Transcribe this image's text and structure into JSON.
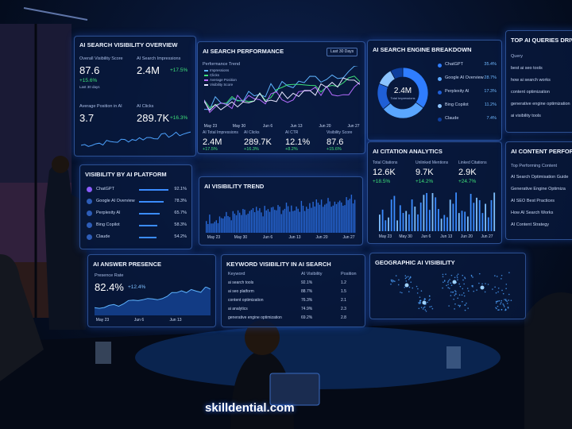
{
  "overview": {
    "title": "AI SEARCH VISIBILITY OVERVIEW",
    "metrics": [
      {
        "label": "Overall Visibility Score",
        "value": "87.6",
        "change": "+15.6%",
        "note": "Last 30 days"
      },
      {
        "label": "AI Search Impressions",
        "value": "2.4M",
        "change": "+17.5%"
      },
      {
        "label": "Average Position in AI",
        "value": "3.7"
      },
      {
        "label": "AI Clicks",
        "value": "289.7K",
        "change": "+16.3%"
      }
    ]
  },
  "performance": {
    "title": "AI SEARCH PERFORMANCE",
    "range": "Last 30 Days",
    "chart_label": "Performance Trend",
    "legend": [
      "Impressions",
      "Clicks",
      "Average Position",
      "Visibility Score"
    ],
    "x_labels": [
      "May 23",
      "May 30",
      "Jun 6",
      "Jun 13",
      "Jun 20",
      "Jun 27"
    ],
    "metrics": [
      {
        "label": "AI Total Impressions",
        "value": "2.4M",
        "change": "+17.5%"
      },
      {
        "label": "AI Clicks",
        "value": "289.7K",
        "change": "+16.3%"
      },
      {
        "label": "AI CTR",
        "value": "12.1%",
        "change": "+8.2%"
      },
      {
        "label": "Visibility Score",
        "value": "87.6",
        "change": "+15.6%"
      }
    ]
  },
  "engines": {
    "title": "AI SEARCH ENGINE BREAKDOWN",
    "center_value": "2.4M",
    "center_label": "Total Impressions",
    "rows": [
      [
        "ChatGPT",
        "35.4%"
      ],
      [
        "Google AI Overview",
        "28.7%"
      ],
      [
        "Perplexity AI",
        "17.3%"
      ],
      [
        "Bing Copilot",
        "11.2%"
      ],
      [
        "Claude",
        "7.4%"
      ]
    ]
  },
  "top_queries": {
    "title": "TOP AI QUERIES DRIVING",
    "header": "Query",
    "rows": [
      "best ai seo tools",
      "how ai search works",
      "content optimization",
      "generative engine optimization",
      "ai visibility tools"
    ]
  },
  "platforms": {
    "title": "VISIBILITY BY AI PLATFORM",
    "rows": [
      [
        "ChatGPT",
        "92.1%"
      ],
      [
        "Google AI Overview",
        "78.3%"
      ],
      [
        "Perplexity AI",
        "65.7%"
      ],
      [
        "Bing Copilot",
        "58.3%"
      ],
      [
        "Claude",
        "54.2%"
      ]
    ]
  },
  "trend": {
    "title": "AI VISIBILITY TREND",
    "x_labels": [
      "May 23",
      "May 30",
      "Jun 6",
      "Jun 13",
      "Jun 20",
      "Jun 27"
    ]
  },
  "citations": {
    "title": "AI CITATION ANALYTICS",
    "metrics": [
      [
        "Total Citations",
        "12.6K",
        "+18.5%"
      ],
      [
        "Unlinked Mentions",
        "9.7K",
        "+14.2%"
      ],
      [
        "Linked Citations",
        "2.9K",
        "+24.7%"
      ]
    ],
    "x_labels": [
      "May 23",
      "May 30",
      "Jun 6",
      "Jun 13",
      "Jun 20",
      "Jun 27"
    ]
  },
  "content": {
    "title": "AI CONTENT PERFORMA",
    "header": "Top Performing Content",
    "rows": [
      "AI Search Optimisation Guide",
      "Generative Engine Optimiza",
      "AI SEO Best Practices",
      "How AI Search Works",
      "AI Content Strategy"
    ]
  },
  "answer_presence": {
    "title": "AI ANSWER PRESENCE",
    "label": "Presence Rate",
    "value": "82.4%",
    "change": "+12.4%",
    "x_labels": [
      "May 23",
      "Jun 6",
      "Jun 13"
    ]
  },
  "keywords": {
    "title": "KEYWORD VISIBILITY IN AI SEARCH",
    "columns": [
      "Keyword",
      "AI Visibility",
      "Position"
    ],
    "rows": [
      [
        "ai search tools",
        "92.1%",
        "1.2"
      ],
      [
        "ai seo platform",
        "88.7%",
        "1.5"
      ],
      [
        "content optimization",
        "76.3%",
        "2.1"
      ],
      [
        "ai analytics",
        "74.9%",
        "2.3"
      ],
      [
        "generative engine optimization",
        "69.2%",
        "2.8"
      ]
    ]
  },
  "geo": {
    "title": "GEOGRAPHIC AI VISIBILITY"
  },
  "watermark": "skilldential.com"
}
